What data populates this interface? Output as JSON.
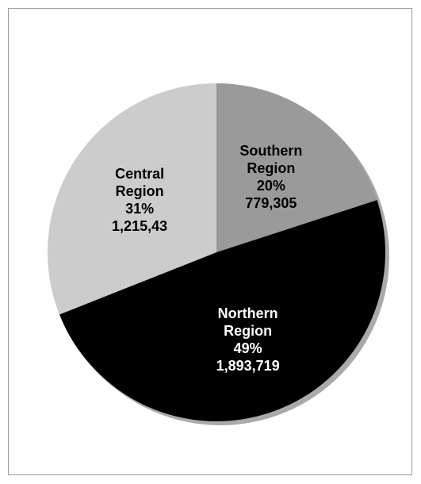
{
  "chart_data": {
    "type": "pie",
    "categories": [
      "Southern Region",
      "Northern Region",
      "Central Region"
    ],
    "values": [
      20,
      49,
      31
    ],
    "value_labels": [
      "20%",
      "49%",
      "31%"
    ],
    "count_labels": [
      "779,305",
      "1,893,719",
      "1,215,43"
    ],
    "colors": [
      "#9a9a9a",
      "#000000",
      "#cccccc"
    ],
    "label_colors": [
      "#000000",
      "#ffffff",
      "#000000"
    ]
  }
}
